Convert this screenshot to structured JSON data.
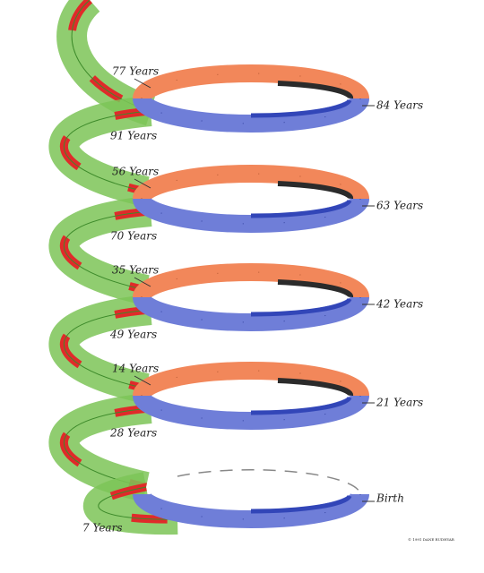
{
  "loops": [
    {
      "top": "77 Years",
      "right": "84 Years",
      "bottom": "91 Years"
    },
    {
      "top": "56 Years",
      "right": "63 Years",
      "bottom": "70 Years"
    },
    {
      "top": "35 Years",
      "right": "42 Years",
      "bottom": "49 Years"
    },
    {
      "top": "14 Years",
      "right": "21 Years",
      "bottom": "28 Years"
    },
    {
      "right": "Birth",
      "bottom": "7 Years"
    }
  ],
  "copyright": "© 1991 DANE RUDHYAR"
}
